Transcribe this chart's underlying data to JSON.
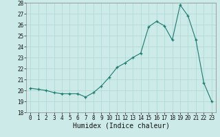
{
  "x": [
    0,
    1,
    2,
    3,
    4,
    5,
    6,
    7,
    8,
    9,
    10,
    11,
    12,
    13,
    14,
    15,
    16,
    17,
    18,
    19,
    20,
    21,
    22,
    23
  ],
  "y": [
    20.2,
    20.1,
    20.0,
    19.8,
    19.7,
    19.7,
    19.7,
    19.4,
    19.8,
    20.4,
    21.2,
    22.1,
    22.5,
    23.0,
    23.4,
    25.8,
    26.3,
    25.9,
    24.6,
    27.8,
    26.8,
    24.6,
    20.7,
    19.0
  ],
  "ylim": [
    18,
    28
  ],
  "xlim": [
    -0.5,
    23.5
  ],
  "yticks": [
    18,
    19,
    20,
    21,
    22,
    23,
    24,
    25,
    26,
    27,
    28
  ],
  "xticks": [
    0,
    1,
    2,
    3,
    4,
    5,
    6,
    7,
    8,
    9,
    10,
    11,
    12,
    13,
    14,
    15,
    16,
    17,
    18,
    19,
    20,
    21,
    22,
    23
  ],
  "xlabel": "Humidex (Indice chaleur)",
  "line_color": "#1a7a6e",
  "marker": "+",
  "bg_color": "#cceae7",
  "grid_color": "#aad6d2",
  "title": ""
}
